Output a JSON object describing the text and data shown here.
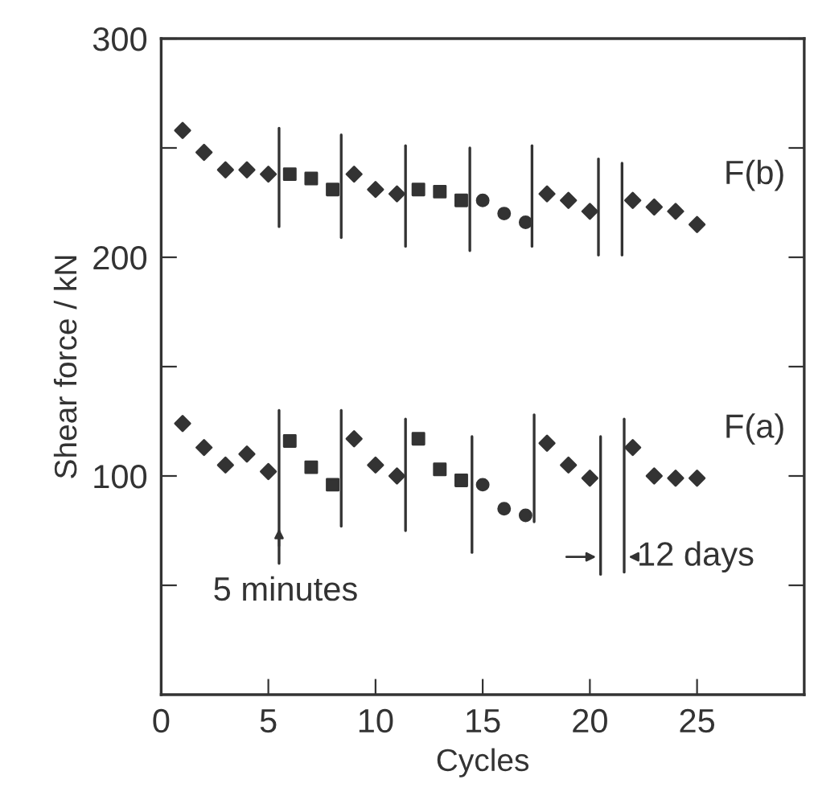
{
  "chart_data": {
    "type": "scatter",
    "xlabel": "Cycles",
    "ylabel": "Shear force / kN",
    "xlim": [
      0,
      30
    ],
    "xticks": [
      0,
      5,
      10,
      15,
      20,
      25
    ],
    "ylim": [
      0,
      300
    ],
    "yticks": [
      {
        "value": 50,
        "label": null
      },
      100,
      {
        "value": 150,
        "label": null
      },
      200,
      {
        "value": 250,
        "label": null
      },
      300
    ],
    "grid": false,
    "series": [
      {
        "name": "F(b)",
        "marker": "diamond",
        "color": "#333333",
        "x": [
          1,
          2,
          3,
          4,
          5,
          9,
          10,
          11,
          18,
          19,
          20,
          22,
          23,
          24,
          25
        ],
        "values": [
          258,
          248,
          240,
          240,
          238,
          238,
          231,
          229,
          229,
          226,
          221,
          226,
          223,
          221,
          215
        ]
      },
      {
        "type": "scatter",
        "marker": "square",
        "color": "#333333",
        "x": [
          6,
          7,
          8,
          12,
          13,
          14
        ],
        "values": [
          238,
          236,
          231,
          231,
          230,
          226
        ]
      },
      {
        "type": "scatter",
        "marker": "circle",
        "color": "#333333",
        "x": [
          15,
          16,
          17
        ],
        "values": [
          226,
          220,
          216
        ]
      },
      {
        "name": "F(a)",
        "marker": "diamond",
        "color": "#333333",
        "x": [
          1,
          2,
          3,
          4,
          5,
          9,
          10,
          11,
          18,
          19,
          20,
          22,
          23,
          24,
          25
        ],
        "values": [
          124,
          113,
          105,
          110,
          102,
          117,
          105,
          100,
          115,
          105,
          99,
          113,
          100,
          99,
          99
        ]
      },
      {
        "type": "scatter",
        "marker": "square",
        "color": "#333333",
        "x": [
          6,
          7,
          8,
          12,
          13,
          14
        ],
        "values": [
          116,
          104,
          96,
          117,
          103,
          98
        ]
      },
      {
        "type": "scatter",
        "marker": "circle",
        "color": "#333333",
        "x": [
          15,
          16,
          17
        ],
        "values": [
          96,
          85,
          82
        ]
      },
      {
        "type": "line",
        "color": "#333333",
        "x": [
          5.5,
          5.5
        ],
        "values": [
          259,
          214
        ]
      },
      {
        "type": "line",
        "color": "#333333",
        "x": [
          8.4,
          8.4
        ],
        "values": [
          256,
          209
        ]
      },
      {
        "type": "line",
        "color": "#333333",
        "x": [
          11.4,
          11.4
        ],
        "values": [
          251,
          205
        ]
      },
      {
        "type": "line",
        "color": "#333333",
        "x": [
          14.4,
          14.4
        ],
        "values": [
          250,
          203
        ]
      },
      {
        "type": "line",
        "color": "#333333",
        "x": [
          17.3,
          17.3
        ],
        "values": [
          251,
          205
        ]
      },
      {
        "type": "line",
        "color": "#333333",
        "x": [
          20.4,
          20.4
        ],
        "values": [
          245,
          201
        ]
      },
      {
        "type": "line",
        "color": "#333333",
        "x": [
          21.5,
          21.5
        ],
        "values": [
          243,
          201
        ]
      },
      {
        "type": "line",
        "color": "#333333",
        "x": [
          5.5,
          5.5
        ],
        "values": [
          130,
          60
        ]
      },
      {
        "type": "line",
        "color": "#333333",
        "x": [
          8.4,
          8.4
        ],
        "values": [
          130,
          77
        ]
      },
      {
        "type": "line",
        "color": "#333333",
        "x": [
          11.4,
          11.4
        ],
        "values": [
          126,
          75
        ]
      },
      {
        "type": "line",
        "color": "#333333",
        "x": [
          14.5,
          14.5
        ],
        "values": [
          118,
          65
        ]
      },
      {
        "type": "line",
        "color": "#333333",
        "x": [
          17.4,
          17.4
        ],
        "values": [
          128,
          79
        ]
      },
      {
        "type": "line",
        "color": "#333333",
        "x": [
          20.5,
          20.5
        ],
        "values": [
          118,
          55
        ]
      },
      {
        "type": "line",
        "color": "#333333",
        "x": [
          21.6,
          21.6
        ],
        "values": [
          126,
          56
        ]
      }
    ],
    "annotations": [
      {
        "text": "5 minutes",
        "x": 5.5,
        "y": 78
      },
      {
        "text": "12 days",
        "x": 21.6,
        "y": 63
      }
    ]
  }
}
